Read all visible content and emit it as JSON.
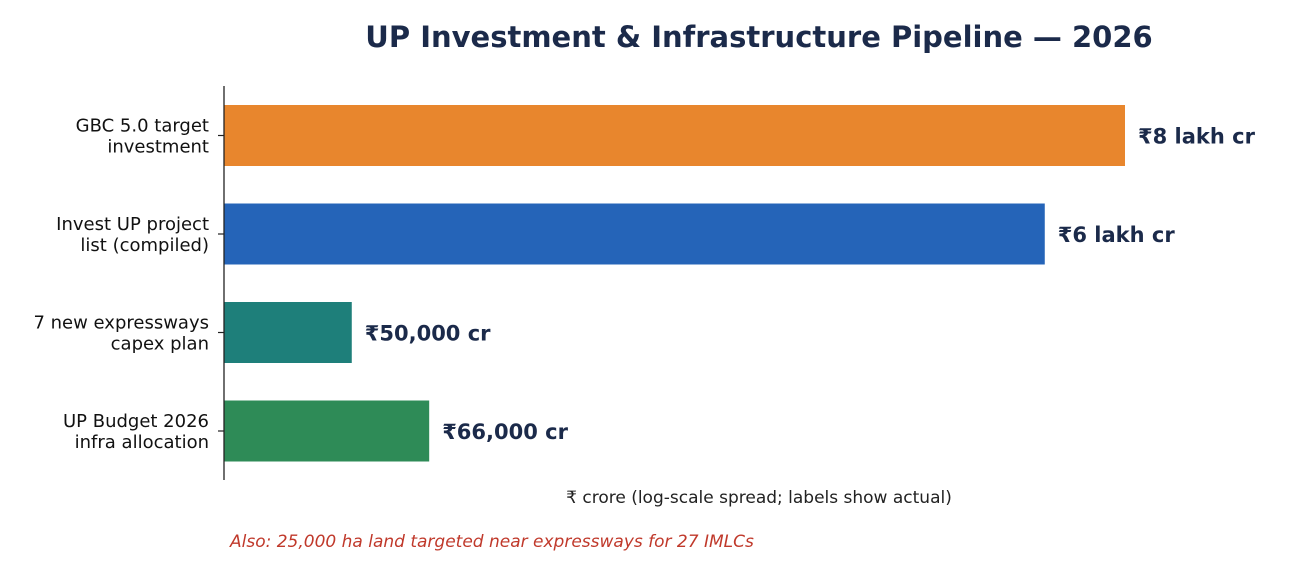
{
  "chart_data": {
    "type": "bar",
    "orientation": "horizontal",
    "title": "UP Investment & Infrastructure Pipeline — 2026",
    "xlabel": "₹ crore (log-scale spread; labels show actual)",
    "ylabel": "",
    "x_scale": "log",
    "grid": false,
    "categories": [
      [
        "GBC 5.0 target",
        "investment"
      ],
      [
        "Invest UP project",
        "list (compiled)"
      ],
      [
        "7 new expressways",
        "capex plan"
      ],
      [
        "UP Budget 2026",
        "infra allocation"
      ]
    ],
    "values": [
      800000,
      600000,
      50000,
      66000
    ],
    "value_labels": [
      "₹8 lakh cr",
      "₹6 lakh cr",
      "₹50,000 cr",
      "₹66,000 cr"
    ],
    "colors": [
      "#e8862d",
      "#2564b8",
      "#1e7f7a",
      "#2e8b57"
    ],
    "annotation": "Also: 25,000 ha land targeted near expressways for 27 IMLCs"
  }
}
